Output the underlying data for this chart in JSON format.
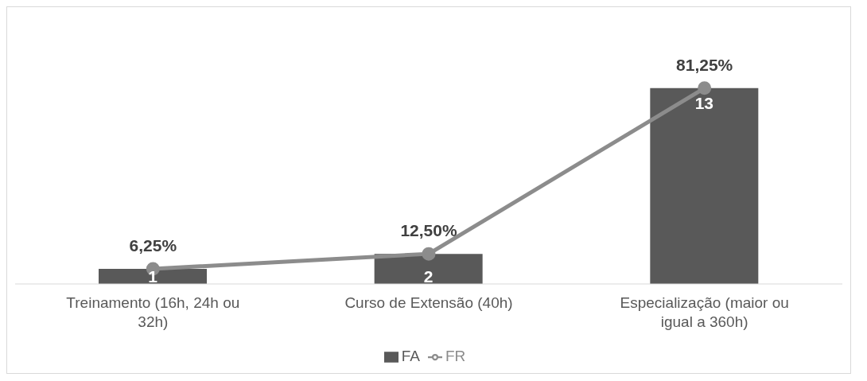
{
  "chart_data": {
    "type": "bar",
    "categories": [
      "Treinamento (16h, 24h ou 32h)",
      "Curso de Extensão (40h)",
      "Especialização (maior ou igual a 360h)"
    ],
    "series": [
      {
        "name": "FA",
        "color": "#595959",
        "values": [
          1,
          2,
          13
        ],
        "value_labels": [
          "1",
          "2",
          "13"
        ]
      },
      {
        "name": "FR",
        "type": "line",
        "axis": "y2",
        "color": "#8c8c8c",
        "values": [
          6.25,
          12.5,
          81.25
        ],
        "value_labels": [
          "6,25%",
          "12,50%",
          "81,25%"
        ]
      }
    ],
    "tick_labels": "x",
    "grid": false,
    "legend": "bottom",
    "marker": "circle",
    "line_style": "solid"
  }
}
